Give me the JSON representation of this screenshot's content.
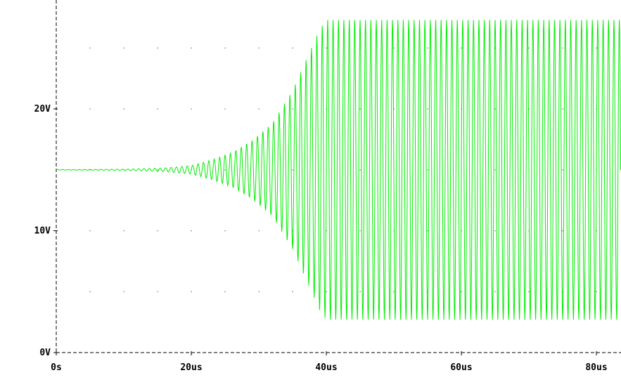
{
  "chart_data": {
    "type": "line",
    "title": "",
    "xlabel": "",
    "ylabel": "",
    "xlim": [
      0,
      84
    ],
    "ylim": [
      0,
      28
    ],
    "x_ticks": [
      {
        "value": 0,
        "label": "0s"
      },
      {
        "value": 20,
        "label": "20us"
      },
      {
        "value": 40,
        "label": "40us"
      },
      {
        "value": 60,
        "label": "60us"
      },
      {
        "value": 80,
        "label": "80us"
      }
    ],
    "y_ticks": [
      {
        "value": 0,
        "label": "0V"
      },
      {
        "value": 10,
        "label": "10V"
      },
      {
        "value": 20,
        "label": "20V"
      }
    ],
    "grid": "dotted",
    "series": [
      {
        "name": "",
        "color": "#00ee00",
        "waveform": "sinusoid",
        "dc_level": 15,
        "period": 0.8,
        "envelope": [
          {
            "x": 0,
            "amp": 0.02
          },
          {
            "x": 10,
            "amp": 0.05
          },
          {
            "x": 16,
            "amp": 0.15
          },
          {
            "x": 20,
            "amp": 0.35
          },
          {
            "x": 23,
            "amp": 0.8
          },
          {
            "x": 26,
            "amp": 1.4
          },
          {
            "x": 29,
            "amp": 2.4
          },
          {
            "x": 32,
            "amp": 3.8
          },
          {
            "x": 35,
            "amp": 6.5
          },
          {
            "x": 37,
            "amp": 9.0
          },
          {
            "x": 39,
            "amp": 11.5
          },
          {
            "x": 40,
            "amp": 12.3
          },
          {
            "x": 84,
            "amp": 12.3
          }
        ]
      }
    ]
  }
}
